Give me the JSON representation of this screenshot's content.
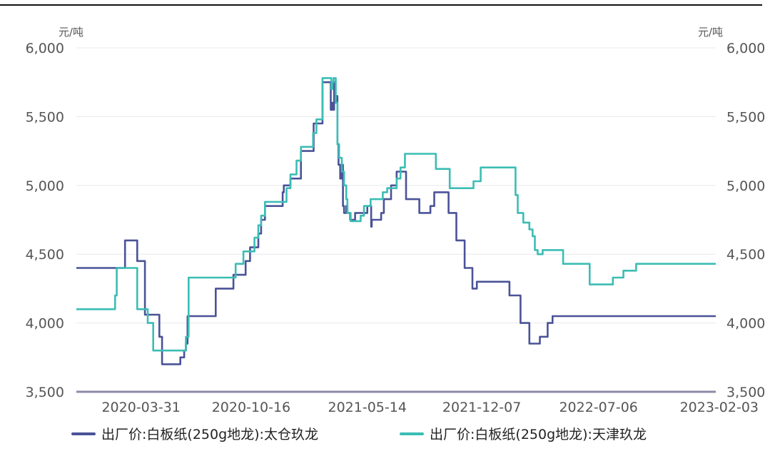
{
  "colors": {
    "series1": "#4a5397",
    "series2": "#3bbdb4",
    "axis": "#8e8aa6",
    "grid": "#e8e8ee"
  },
  "chart_data": {
    "type": "line",
    "left_axis_unit": "元/吨",
    "right_axis_unit": "元/吨",
    "ylim": [
      3500,
      6000
    ],
    "yticks": [
      "3,500",
      "4,000",
      "4,500",
      "5,000",
      "5,500",
      "6,000"
    ],
    "ytick_values": [
      3500,
      4000,
      4500,
      5000,
      5500,
      6000
    ],
    "xlim": [
      "2019-12-05",
      "2023-02-03"
    ],
    "xticks": [
      "2020-03-31",
      "2020-10-16",
      "2021-05-14",
      "2021-12-07",
      "2022-07-06",
      "2023-02-03"
    ],
    "grid": true,
    "legend_position": "bottom",
    "series": [
      {
        "name": "出厂价:白板纸(250g地龙):太仓玖龙",
        "x": [
          "2019-12-05",
          "2020-03-01",
          "2020-03-02",
          "2020-03-14",
          "2020-03-15",
          "2020-03-20",
          "2020-03-24",
          "2020-04-07",
          "2020-04-12",
          "2020-04-16",
          "2020-04-28",
          "2020-05-03",
          "2020-05-08",
          "2020-06-03",
          "2020-06-07",
          "2020-06-10",
          "2020-06-13",
          "2020-06-17",
          "2020-06-20",
          "2020-06-23",
          "2020-08-13",
          "2020-08-23",
          "2020-09-08",
          "2020-09-14",
          "2020-09-22",
          "2020-10-06",
          "2020-10-14",
          "2020-10-29",
          "2020-11-03",
          "2020-11-10",
          "2020-12-07",
          "2020-12-12",
          "2020-12-14",
          "2020-12-19",
          "2020-12-26",
          "2021-01-14",
          "2021-01-22",
          "2021-02-06",
          "2021-02-09",
          "2021-02-22",
          "2021-03-05",
          "2021-03-07",
          "2021-03-09",
          "2021-03-11",
          "2021-03-13",
          "2021-03-15",
          "2021-03-17",
          "2021-03-21",
          "2021-03-23",
          "2021-03-26",
          "2021-03-29",
          "2021-03-31",
          "2021-04-02",
          "2021-04-06",
          "2021-04-08",
          "2021-04-13",
          "2021-04-17",
          "2021-04-21",
          "2021-04-22",
          "2021-04-24",
          "2021-04-27",
          "2021-05-14",
          "2021-05-20",
          "2021-05-21",
          "2021-05-22",
          "2021-06-08",
          "2021-06-13",
          "2021-06-26",
          "2021-07-06",
          "2021-07-17",
          "2021-07-23",
          "2021-08-11",
          "2021-08-16",
          "2021-08-22",
          "2021-08-25",
          "2021-08-30",
          "2021-09-05",
          "2021-09-12",
          "2021-09-20",
          "2021-10-08",
          "2021-10-22",
          "2021-11-06",
          "2021-11-20",
          "2021-11-28",
          "2022-01-12",
          "2022-01-26",
          "2022-02-15",
          "2022-03-03",
          "2022-03-10",
          "2022-03-22",
          "2022-03-28",
          "2022-04-05",
          "2022-04-14",
          "2022-04-25",
          "2022-05-05",
          "2022-05-08",
          "2022-05-12",
          "2022-05-16",
          "2022-05-30",
          "2022-06-11",
          "2022-06-19",
          "2022-06-29",
          "2022-07-16",
          "2022-07-28",
          "2022-08-29",
          "2022-09-09",
          "2022-10-10",
          "2022-10-24",
          "2022-10-28",
          "2022-11-04",
          "2023-02-03"
        ],
        "y": [
          4400,
          4400,
          4600,
          4600,
          4600,
          4600,
          4450,
          4060,
          4060,
          4060,
          4060,
          3900,
          3700,
          3700,
          3700,
          3750,
          3750,
          3800,
          3850,
          4050,
          4250,
          4250,
          4250,
          4350,
          4350,
          4450,
          4550,
          4650,
          4750,
          4850,
          4850,
          4950,
          5000,
          5000,
          5050,
          5250,
          5250,
          5450,
          5450,
          5750,
          5750,
          5750,
          5550,
          5600,
          5550,
          5750,
          5650,
          5300,
          5150,
          5050,
          5150,
          4850,
          4800,
          4850,
          4800,
          4750,
          4750,
          4750,
          4800,
          4800,
          4800,
          4850,
          4850,
          4700,
          4750,
          4800,
          4900,
          5000,
          5100,
          5100,
          4900,
          4900,
          4800,
          4800,
          4800,
          4800,
          4850,
          4950,
          4950,
          4800,
          4600,
          4400,
          4250,
          4300,
          4300,
          4200,
          4000,
          3850,
          3850,
          3900,
          3900,
          4000,
          4050,
          4050,
          4050,
          4050,
          4050,
          4050,
          4050,
          4050,
          4050,
          4050,
          4050,
          4050,
          4050,
          4050,
          4050,
          4050,
          4050,
          4050,
          4050
        ]
      },
      {
        "name": "出厂价:白板纸(250g地龙):天津玖龙",
        "x": [
          "2019-12-05",
          "2020-02-10",
          "2020-02-13",
          "2020-02-16",
          "2020-03-13",
          "2020-03-15",
          "2020-03-19",
          "2020-03-24",
          "2020-04-12",
          "2020-04-16",
          "2020-04-22",
          "2020-06-10",
          "2020-06-20",
          "2020-06-25",
          "2020-08-18",
          "2020-09-02",
          "2020-09-08",
          "2020-09-18",
          "2020-10-02",
          "2020-10-22",
          "2020-10-29",
          "2020-11-03",
          "2020-11-10",
          "2020-12-07",
          "2020-12-19",
          "2020-12-26",
          "2021-01-06",
          "2021-01-14",
          "2021-01-26",
          "2021-02-05",
          "2021-02-11",
          "2021-02-22",
          "2021-03-08",
          "2021-03-10",
          "2021-03-12",
          "2021-03-14",
          "2021-03-18",
          "2021-03-21",
          "2021-03-24",
          "2021-03-29",
          "2021-04-02",
          "2021-04-06",
          "2021-04-08",
          "2021-04-14",
          "2021-04-22",
          "2021-05-02",
          "2021-05-08",
          "2021-05-14",
          "2021-05-20",
          "2021-05-28",
          "2021-06-11",
          "2021-06-19",
          "2021-07-06",
          "2021-07-13",
          "2021-07-21",
          "2021-08-05",
          "2021-09-15",
          "2021-10-10",
          "2021-10-22",
          "2021-11-01",
          "2021-11-12",
          "2021-11-22",
          "2021-12-05",
          "2021-12-18",
          "2022-02-06",
          "2022-02-10",
          "2022-02-20",
          "2022-03-03",
          "2022-03-09",
          "2022-03-13",
          "2022-03-18",
          "2022-03-27",
          "2022-04-12",
          "2022-05-03",
          "2022-05-06",
          "2022-05-20",
          "2022-05-22",
          "2022-06-20",
          "2022-07-05",
          "2022-07-12",
          "2022-08-01",
          "2022-08-20",
          "2022-08-30",
          "2022-09-12",
          "2022-10-06",
          "2022-10-15",
          "2022-11-01",
          "2022-11-12",
          "2022-11-20",
          "2022-12-06",
          "2022-12-20",
          "2023-01-06",
          "2023-02-03"
        ],
        "y": [
          4100,
          4100,
          4200,
          4400,
          4400,
          4400,
          4400,
          4100,
          4000,
          4000,
          3800,
          3800,
          3900,
          4330,
          4330,
          4330,
          4330,
          4430,
          4520,
          4620,
          4710,
          4780,
          4880,
          4880,
          4980,
          5080,
          5180,
          5280,
          5280,
          5380,
          5480,
          5780,
          5780,
          5700,
          5750,
          5780,
          5600,
          5300,
          5200,
          5100,
          5000,
          4900,
          4800,
          4740,
          4740,
          4780,
          4850,
          4850,
          4900,
          4900,
          4950,
          4980,
          5050,
          5130,
          5230,
          5230,
          5120,
          4980,
          4980,
          4980,
          4980,
          5030,
          5130,
          5130,
          4930,
          4800,
          4730,
          4680,
          4630,
          4530,
          4500,
          4530,
          4530,
          4430,
          4430,
          4430,
          4430,
          4280,
          4280,
          4280,
          4330,
          4380,
          4380,
          4430,
          4430,
          4430,
          4430,
          4430,
          4430,
          4430,
          4430,
          4430,
          4430
        ]
      }
    ]
  }
}
